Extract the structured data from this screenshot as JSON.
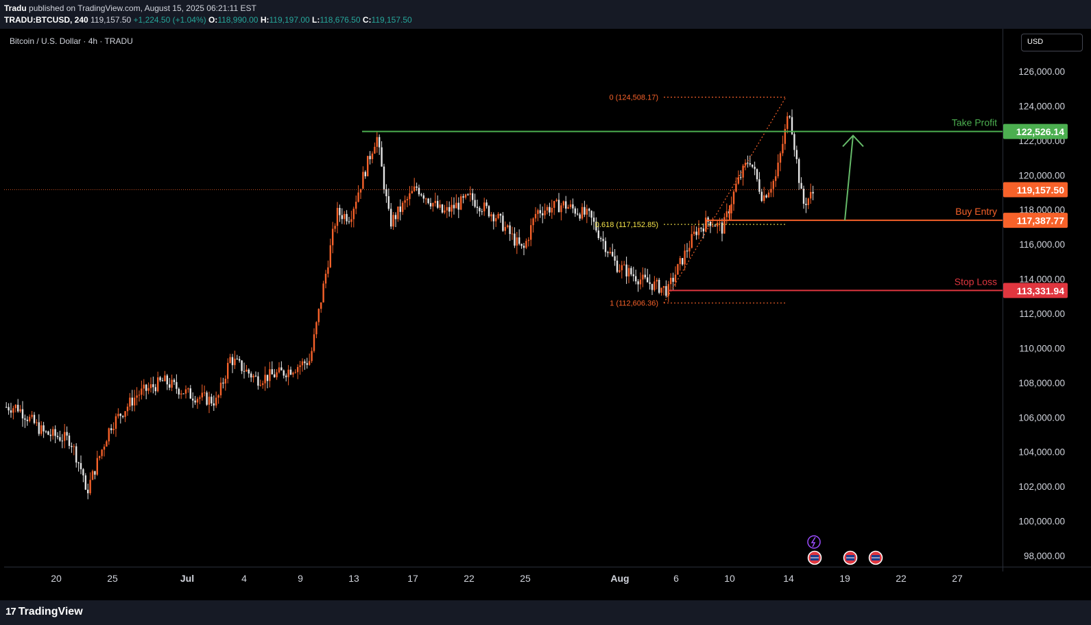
{
  "header": {
    "publisher": "Tradu",
    "published_text": "published on TradingView.com, August 15, 2025 06:21:11 EST",
    "symbol": "TRADU:BTCUSD, 240",
    "last": "119,157.50",
    "change": "+1,224.50 (+1.04%)",
    "o_label": "O:",
    "o": "118,990.00",
    "h_label": "H:",
    "h": "119,197.00",
    "l_label": "L:",
    "l": "118,676.50",
    "c_label": "C:",
    "c": "119,157.50"
  },
  "pane_title": "Bitcoin / U.S. Dollar · 4h · TRADU",
  "currency_button": "USD",
  "footer": {
    "logo_mark": "17",
    "logo_text": "TradingView"
  },
  "colors": {
    "up": "#f7622a",
    "down": "#e6e6e6",
    "take_profit": "#4caf50",
    "buy_entry": "#f7622a",
    "stop_loss": "#e0363f",
    "fib": "#f7622a",
    "fib_mid": "#f5e44a",
    "arrow": "#66bb6a"
  },
  "chart_data": {
    "type": "candlestick",
    "title": "Bitcoin / U.S. Dollar · 4h · TRADU",
    "y_range": [
      97000,
      128000
    ],
    "y_ticks": [
      "98,000.00",
      "100,000.00",
      "102,000.00",
      "104,000.00",
      "106,000.00",
      "108,000.00",
      "110,000.00",
      "112,000.00",
      "114,000.00",
      "116,000.00",
      "118,000.00",
      "120,000.00",
      "122,000.00",
      "124,000.00",
      "126,000.00"
    ],
    "x_ticks": [
      "20",
      "25",
      "Jul",
      "4",
      "9",
      "13",
      "17",
      "22",
      "25",
      "Aug",
      "6",
      "10",
      "14",
      "19",
      "22",
      "27"
    ],
    "last_price": {
      "value": 119157.5,
      "label": "119,157.50"
    },
    "levels": [
      {
        "name": "Take Profit",
        "value": 122526.14,
        "label": "122,526.14"
      },
      {
        "name": "Buy Entry",
        "value": 117387.77,
        "label": "117,387.77"
      },
      {
        "name": "Stop Loss",
        "value": 113331.94,
        "label": "113,331.94"
      }
    ],
    "fibonacci": [
      {
        "label": "0 (124,508.17)",
        "value": 124508.17
      },
      {
        "label": "0.618 (117,152.85)",
        "value": 117152.85
      },
      {
        "label": "1 (112,606.36)",
        "value": 112606.36
      }
    ],
    "path_points": [
      {
        "date": "2025-06-17",
        "value": 106600
      },
      {
        "date": "2025-06-19",
        "value": 105100
      },
      {
        "date": "2025-06-21",
        "value": 104700
      },
      {
        "date": "2025-06-22",
        "value": 102600
      },
      {
        "date": "2025-06-22",
        "value": 101200
      },
      {
        "date": "2025-06-24",
        "value": 105500
      },
      {
        "date": "2025-06-26",
        "value": 107300
      },
      {
        "date": "2025-06-28",
        "value": 108100
      },
      {
        "date": "2025-06-30",
        "value": 107300
      },
      {
        "date": "2025-07-02",
        "value": 106900
      },
      {
        "date": "2025-07-03",
        "value": 109400
      },
      {
        "date": "2025-07-05",
        "value": 108200
      },
      {
        "date": "2025-07-07",
        "value": 108600
      },
      {
        "date": "2025-07-09",
        "value": 109300
      },
      {
        "date": "2025-07-11",
        "value": 117800
      },
      {
        "date": "2025-07-12",
        "value": 117600
      },
      {
        "date": "2025-07-14",
        "value": 122300
      },
      {
        "date": "2025-07-15",
        "value": 117200
      },
      {
        "date": "2025-07-17",
        "value": 119300
      },
      {
        "date": "2025-07-19",
        "value": 117800
      },
      {
        "date": "2025-07-21",
        "value": 118700
      },
      {
        "date": "2025-07-23",
        "value": 117600
      },
      {
        "date": "2025-07-25",
        "value": 115600
      },
      {
        "date": "2025-07-26",
        "value": 117900
      },
      {
        "date": "2025-07-28",
        "value": 118300
      },
      {
        "date": "2025-07-30",
        "value": 117600
      },
      {
        "date": "2025-08-01",
        "value": 114800
      },
      {
        "date": "2025-08-03",
        "value": 113900
      },
      {
        "date": "2025-08-05",
        "value": 113300
      },
      {
        "date": "2025-08-05",
        "value": 113600
      },
      {
        "date": "2025-08-07",
        "value": 116800
      },
      {
        "date": "2025-08-08",
        "value": 117400
      },
      {
        "date": "2025-08-09",
        "value": 116900
      },
      {
        "date": "2025-08-10",
        "value": 119400
      },
      {
        "date": "2025-08-11",
        "value": 121000
      },
      {
        "date": "2025-08-12",
        "value": 118700
      },
      {
        "date": "2025-08-13",
        "value": 119900
      },
      {
        "date": "2025-08-14",
        "value": 123800
      },
      {
        "date": "2025-08-15",
        "value": 118300
      },
      {
        "date": "2025-08-16",
        "value": 119157.5
      }
    ]
  }
}
